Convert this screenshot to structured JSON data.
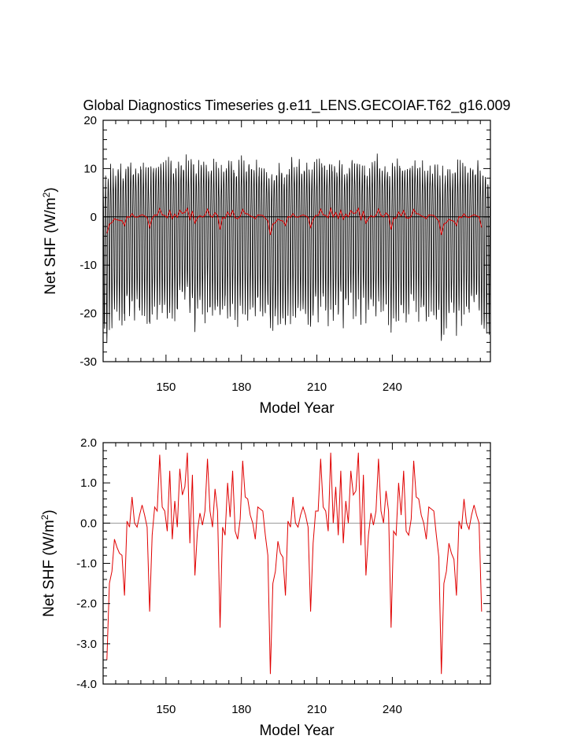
{
  "figure": {
    "title": "Global Diagnostics Timeseries g.e11_LENS.GECOIAF.T62_g16.009"
  },
  "chart_data": [
    {
      "type": "line",
      "xlabel": "Model Year",
      "ylabel": "Net SHF (W/m",
      "ylabel_sup": "2",
      "ylabel_close": ")",
      "xlim": [
        125,
        279
      ],
      "ylim": [
        -30,
        20
      ],
      "xticks": [
        150,
        180,
        210,
        240
      ],
      "xtick_labels": [
        "150",
        "180",
        "210",
        "240"
      ],
      "yticks": [
        -30,
        -20,
        -10,
        0,
        10,
        20
      ],
      "ytick_labels": [
        "-30",
        "-20",
        "-10",
        "0",
        "10",
        "20"
      ],
      "reference_line": 0,
      "grid": false,
      "series": [
        {
          "color": "#000000",
          "resolution": "monthly",
          "seasonal_max_base": 10,
          "seasonal_min_base": -19,
          "values_note": "dense monthly series oscillating approx between -20 and +12"
        },
        {
          "color": "#e00000",
          "resolution": "annual",
          "uses_annual_series": true
        }
      ]
    },
    {
      "type": "line",
      "xlabel": "Model Year",
      "ylabel": "Net SHF (W/m",
      "ylabel_sup": "2",
      "ylabel_close": ")",
      "xlim": [
        125,
        279
      ],
      "ylim": [
        -4,
        2
      ],
      "xticks": [
        150,
        180,
        210,
        240
      ],
      "xtick_labels": [
        "150",
        "180",
        "210",
        "240"
      ],
      "yticks": [
        -4,
        -3,
        -2,
        -1,
        0,
        1,
        2
      ],
      "ytick_labels": [
        "-4.0",
        "-3.0",
        "-2.0",
        "-1.0",
        "0.0",
        "1.0",
        "2.0"
      ],
      "reference_line": 0,
      "grid": false,
      "series": [
        {
          "color": "#e00000",
          "resolution": "annual",
          "uses_annual_series": true
        }
      ]
    }
  ],
  "annual_series": {
    "start_year": 126,
    "values": [
      -3.4,
      -1.5,
      -1.2,
      -0.4,
      -0.6,
      -0.75,
      -0.8,
      -1.8,
      0.05,
      -0.1,
      0.65,
      0.0,
      -0.1,
      0.2,
      0.45,
      0.2,
      -0.1,
      -2.2,
      -0.3,
      0.4,
      0.3,
      1.7,
      0.4,
      0.3,
      -0.2,
      1.3,
      -0.4,
      0.55,
      -0.1,
      1.35,
      0.7,
      0.9,
      1.75,
      -0.5,
      1.2,
      -1.3,
      -0.2,
      0.25,
      -0.05,
      0.3,
      1.6,
      0.3,
      -0.1,
      0.85,
      0.3,
      -2.6,
      -0.1,
      -0.3,
      1.0,
      0.15,
      1.3,
      -0.2,
      -0.4,
      0.1,
      1.55,
      0.65,
      0.6,
      0.2,
      0.0,
      -0.4,
      0.4,
      0.35,
      0.3,
      -0.3,
      -0.8,
      -3.75,
      -1.5,
      -1.2,
      -0.45,
      -0.75,
      -0.85,
      -1.8,
      0.05,
      -0.1,
      0.65,
      0.0,
      -0.1,
      0.2,
      0.4,
      0.2,
      -0.1,
      -2.2,
      -0.5,
      0.3,
      0.3,
      1.6,
      0.4,
      0.3,
      -0.2,
      1.75,
      0.0,
      0.9,
      -0.3,
      1.3,
      -0.5,
      0.55,
      0.0,
      1.3,
      0.7,
      0.8,
      1.75,
      -0.55,
      1.2,
      -1.3,
      -0.3,
      0.25,
      -0.05,
      0.3,
      1.6,
      0.3,
      0.0,
      0.8,
      0.3,
      -2.6,
      -0.2,
      -0.3,
      1.0,
      0.2,
      1.3,
      -0.2,
      -0.3,
      0.1,
      1.55,
      0.65,
      0.6,
      0.2,
      0.0,
      -0.4,
      0.4,
      0.35,
      0.3,
      -0.3,
      -0.85,
      -3.75,
      -1.5,
      -1.2,
      -0.5,
      -0.75,
      -0.9,
      -1.8,
      0.05,
      -0.15,
      0.6,
      0.0,
      -0.15,
      0.2,
      0.45,
      0.2,
      0.0,
      -2.2
    ]
  }
}
